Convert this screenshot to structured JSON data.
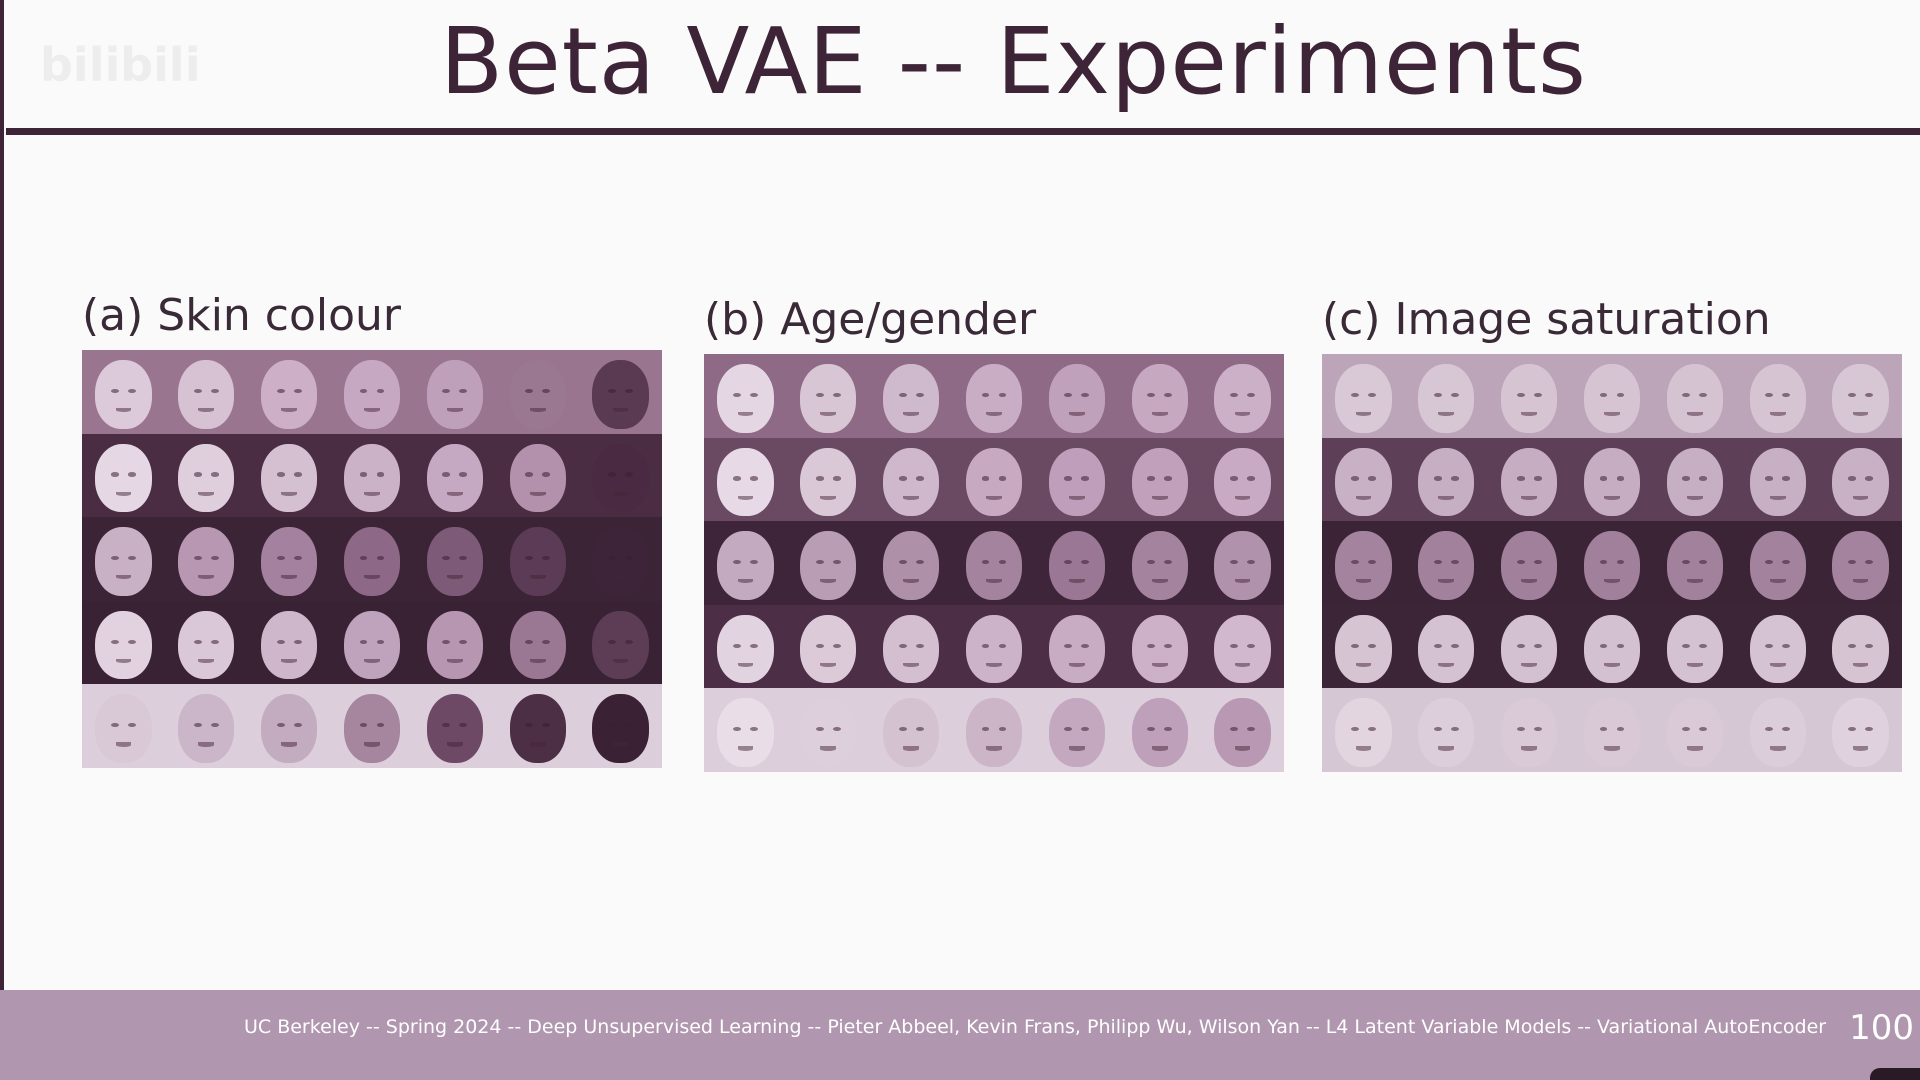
{
  "slide": {
    "title": "Beta VAE -- Experiments",
    "watermark": "bilibili",
    "footer": "UC Berkeley -- Spring 2024 -- Deep Unsupervised Learning -- Pieter Abbeel, Kevin Frans, Philipp Wu, Wilson Yan -- L4 Latent Variable Models -- Variational AutoEncoder",
    "page_number": "100"
  },
  "panels": [
    {
      "label": "(a) Skin colour",
      "rows": [
        {
          "bg": "#9a7590",
          "faces": [
            "#dcc9d9",
            "#d7c2d4",
            "#cdb0c8",
            "#c7a8c2",
            "#bfa0ba",
            "#9a7891",
            "#5a3a52"
          ]
        },
        {
          "bg": "#4a2c43",
          "faces": [
            "#e5d8e4",
            "#dfcfdd",
            "#d5c0d2",
            "#cbb2c7",
            "#c5a8c1",
            "#b391ad",
            "#4a2a43"
          ]
        },
        {
          "bg": "#3c2437",
          "faces": [
            "#c9b1c5",
            "#b797b2",
            "#a4819f",
            "#8d6987",
            "#7d5a77",
            "#5b3b55",
            "#3d2438"
          ]
        },
        {
          "bg": "#3a2235",
          "faces": [
            "#e2d2e0",
            "#dac7d7",
            "#ceb6cb",
            "#bfa2bb",
            "#b796b2",
            "#9a7793",
            "#5d3d56"
          ]
        },
        {
          "bg": "#dccfdb",
          "faces": [
            "#d9c8d6",
            "#cbb5c8",
            "#c3abc0",
            "#a6869f",
            "#6d4966",
            "#4c2e45",
            "#3a2234"
          ]
        }
      ]
    },
    {
      "label": "(b) Age/gender",
      "rows": [
        {
          "bg": "#8e6a87",
          "faces": [
            "#e4d6e2",
            "#d8c6d5",
            "#cfb9cc",
            "#c9adc5",
            "#c0a1bb",
            "#c6a8c1",
            "#ccb0c8"
          ]
        },
        {
          "bg": "#6a4963",
          "faces": [
            "#e7dae6",
            "#dac8d7",
            "#cfb8cc",
            "#c7a9c2",
            "#bf9ebb",
            "#c0a0bb",
            "#c8aac4"
          ]
        },
        {
          "bg": "#3e2539",
          "faces": [
            "#c4aac0",
            "#b99db4",
            "#ae90a9",
            "#a3839e",
            "#9a7895",
            "#a4839f",
            "#b192ac"
          ]
        },
        {
          "bg": "#4c2e46",
          "faces": [
            "#e2d3e0",
            "#dccad9",
            "#d4bfd1",
            "#cdb3c9",
            "#c8acc4",
            "#ccb1c8",
            "#d2b8ce"
          ]
        },
        {
          "bg": "#dccfdb",
          "faces": [
            "#e9dee8",
            "#ddcfdb",
            "#d4c2d1",
            "#cbb5c7",
            "#c3a8bf",
            "#bfa0ba",
            "#b998b4"
          ]
        }
      ]
    },
    {
      "label": "(c) Image saturation",
      "rows": [
        {
          "bg": "#bca5b9",
          "faces": [
            "#d9c9d6",
            "#d7c6d4",
            "#d6c4d3",
            "#d6c4d3",
            "#d5c3d2",
            "#d6c4d3",
            "#d7c6d4"
          ]
        },
        {
          "bg": "#5e3f58",
          "faces": [
            "#c9b1c5",
            "#c7afc3",
            "#c6adc2",
            "#c6adc2",
            "#c7afc3",
            "#c8b0c4",
            "#c9b1c5"
          ]
        },
        {
          "bg": "#3c2437",
          "faces": [
            "#a4839f",
            "#a2819d",
            "#a1809c",
            "#a1809c",
            "#a2819d",
            "#a3829e",
            "#a4839f"
          ]
        },
        {
          "bg": "#3d2538",
          "faces": [
            "#d6c4d3",
            "#d4c1d1",
            "#d3c0d0",
            "#d3c0d0",
            "#d4c1d1",
            "#d5c2d2",
            "#d6c4d3"
          ]
        },
        {
          "bg": "#d6c7d4",
          "faces": [
            "#e2d5e0",
            "#ddcedb",
            "#dacad8",
            "#d9c9d7",
            "#dacad8",
            "#dccddb",
            "#dfd1dd"
          ]
        }
      ]
    }
  ]
}
